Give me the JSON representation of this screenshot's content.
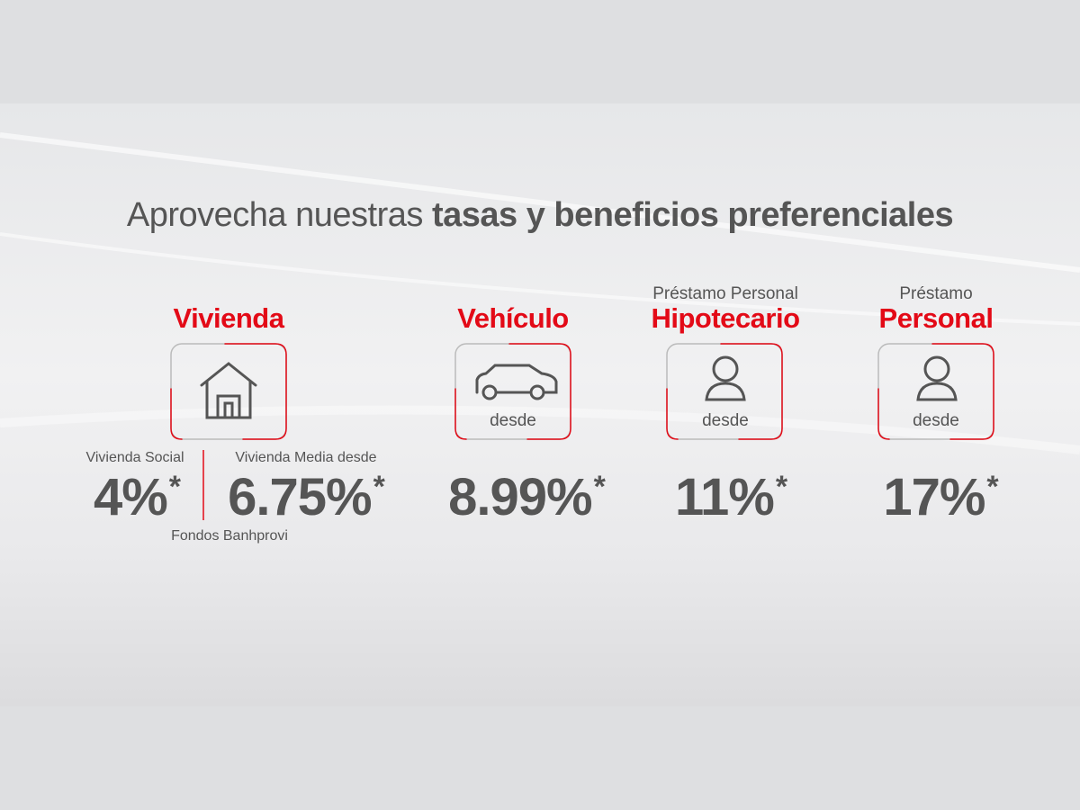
{
  "title": {
    "regular": "Aprovecha nuestras",
    "bold": "tasas y beneficios preferenciales"
  },
  "products": [
    {
      "heading": "Vivienda",
      "rates": [
        {
          "label": "Vivienda Social",
          "rate": "4%",
          "mark": "*"
        },
        {
          "label": "Vivienda Media desde",
          "rate": "6.75%",
          "mark": "*"
        }
      ],
      "note": "Fondos Banhprovi"
    },
    {
      "heading": "Vehículo",
      "from": "desde",
      "rate": "8.99%",
      "mark": "*"
    },
    {
      "pre": "Préstamo Personal",
      "heading": "Hipotecario",
      "from": "desde",
      "rate": "11%",
      "mark": "*"
    },
    {
      "pre": "Préstamo",
      "heading": "Personal",
      "from": "desde",
      "rate": "17%",
      "mark": "*"
    }
  ]
}
